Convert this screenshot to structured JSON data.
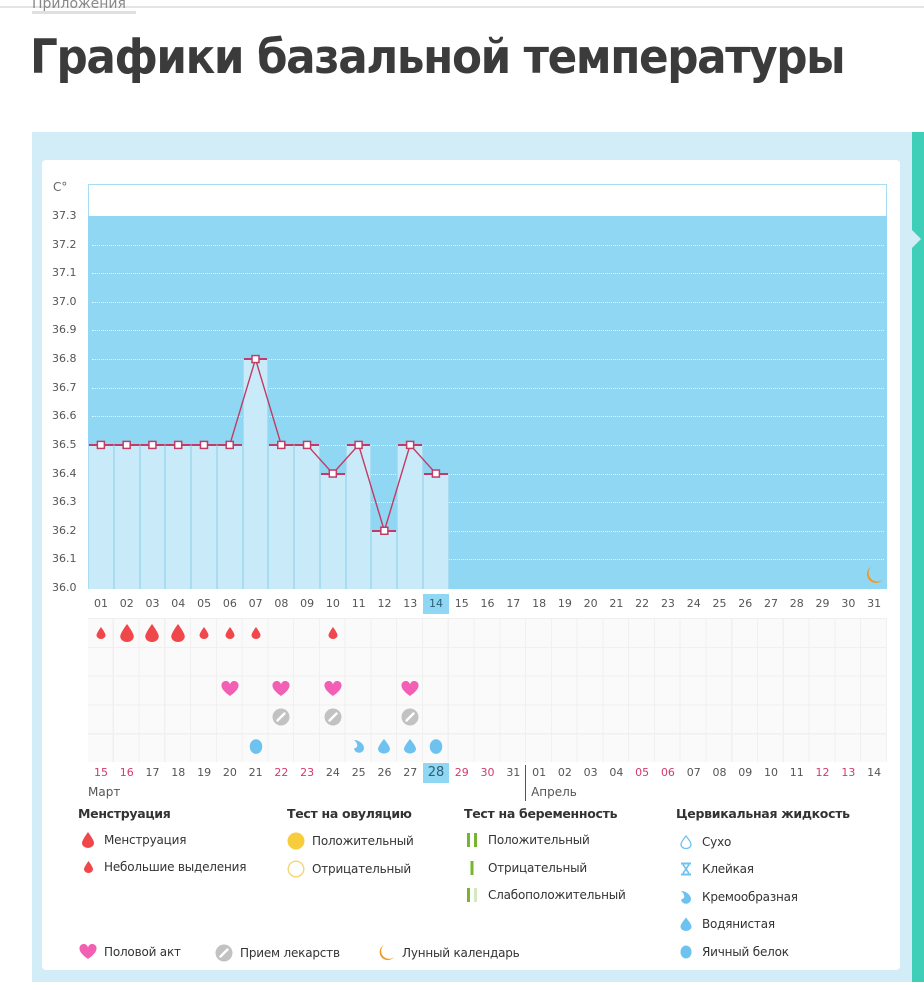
{
  "page": {
    "breadcrumb": "Приложения",
    "title": "Графики базальной температуры"
  },
  "colors": {
    "panel_bg": "#d3edf8",
    "plot_bg": "#8fd7f2",
    "bar_fill": "#c9ebf9",
    "line": "#c23a66",
    "menstruation": "#f0474a",
    "heart": "#f25fb4",
    "pill": "#c2c2c2",
    "cervical": "#6ec2ef",
    "ovulation_positive": "#f8cd3c",
    "pregnancy_test": "#78b52e",
    "moon": "#f29a1f",
    "accent_tab": "#3fcfb8",
    "weekend": "#d23b6b"
  },
  "chart_data": {
    "type": "line",
    "title": "Графики базальной температуры",
    "ylabel": "C°",
    "xlabel": "",
    "ylim": [
      36.0,
      37.3
    ],
    "y_ticks": [
      "37.3",
      "37.2",
      "37.1",
      "37.0",
      "36.9",
      "36.8",
      "36.7",
      "36.6",
      "36.5",
      "36.4",
      "36.3",
      "36.2",
      "36.1",
      "36.0"
    ],
    "grid": true,
    "cycle_days": [
      "01",
      "02",
      "03",
      "04",
      "05",
      "06",
      "07",
      "08",
      "09",
      "10",
      "11",
      "12",
      "13",
      "14",
      "15",
      "16",
      "17",
      "18",
      "19",
      "20",
      "21",
      "22",
      "23",
      "24",
      "25",
      "26",
      "27",
      "28",
      "29",
      "30",
      "31"
    ],
    "selected_cycle_day": "14",
    "series": [
      {
        "name": "Базальная температура",
        "x": [
          "01",
          "02",
          "03",
          "04",
          "05",
          "06",
          "07",
          "08",
          "09",
          "10",
          "11",
          "12",
          "13",
          "14"
        ],
        "values": [
          36.5,
          36.5,
          36.5,
          36.5,
          36.5,
          36.5,
          36.8,
          36.5,
          36.5,
          36.4,
          36.5,
          36.2,
          36.5,
          36.4
        ]
      }
    ],
    "calendar_dates": [
      {
        "d": "15",
        "weekend": true
      },
      {
        "d": "16",
        "weekend": true
      },
      {
        "d": "17",
        "weekend": false
      },
      {
        "d": "18",
        "weekend": false
      },
      {
        "d": "19",
        "weekend": false
      },
      {
        "d": "20",
        "weekend": false
      },
      {
        "d": "21",
        "weekend": false
      },
      {
        "d": "22",
        "weekend": true
      },
      {
        "d": "23",
        "weekend": true
      },
      {
        "d": "24",
        "weekend": false
      },
      {
        "d": "25",
        "weekend": false
      },
      {
        "d": "26",
        "weekend": false
      },
      {
        "d": "27",
        "weekend": false
      },
      {
        "d": "28",
        "weekend": false,
        "selected": true
      },
      {
        "d": "29",
        "weekend": true
      },
      {
        "d": "30",
        "weekend": true
      },
      {
        "d": "31",
        "weekend": false
      },
      {
        "d": "01",
        "weekend": false
      },
      {
        "d": "02",
        "weekend": false
      },
      {
        "d": "03",
        "weekend": false
      },
      {
        "d": "04",
        "weekend": false
      },
      {
        "d": "05",
        "weekend": true
      },
      {
        "d": "06",
        "weekend": true
      },
      {
        "d": "07",
        "weekend": false
      },
      {
        "d": "08",
        "weekend": false
      },
      {
        "d": "09",
        "weekend": false
      },
      {
        "d": "10",
        "weekend": false
      },
      {
        "d": "11",
        "weekend": false
      },
      {
        "d": "12",
        "weekend": true
      },
      {
        "d": "13",
        "weekend": true
      },
      {
        "d": "14",
        "weekend": false
      }
    ],
    "months": [
      {
        "label": "Март",
        "start_index": 0
      },
      {
        "label": "Апрель",
        "start_index": 17
      }
    ],
    "events": {
      "menstruation": [
        {
          "day": 1,
          "type": "spotting"
        },
        {
          "day": 2,
          "type": "menstruation"
        },
        {
          "day": 3,
          "type": "menstruation"
        },
        {
          "day": 4,
          "type": "menstruation"
        },
        {
          "day": 5,
          "type": "spotting"
        },
        {
          "day": 6,
          "type": "spotting"
        },
        {
          "day": 7,
          "type": "spotting"
        },
        {
          "day": 10,
          "type": "spotting"
        }
      ],
      "intercourse": [
        6,
        8,
        10,
        13
      ],
      "medication": [
        8,
        10,
        13
      ],
      "cervical_fluid": [
        {
          "day": 7,
          "type": "egg_white"
        },
        {
          "day": 11,
          "type": "creamy"
        },
        {
          "day": 12,
          "type": "watery"
        },
        {
          "day": 13,
          "type": "watery"
        },
        {
          "day": 14,
          "type": "egg_white"
        }
      ],
      "moon": [
        31
      ]
    }
  },
  "legend": {
    "menstruation": {
      "heading": "Менструация",
      "items": [
        {
          "label": "Менструация",
          "icon": "blood-drop-large-icon"
        },
        {
          "label": "Небольшие выделения",
          "icon": "blood-drop-small-icon"
        }
      ]
    },
    "ovulation_test": {
      "heading": "Тест на овуляцию",
      "items": [
        {
          "label": "Положительный",
          "icon": "filled-circle-icon"
        },
        {
          "label": "Отрицательный",
          "icon": "empty-circle-icon"
        }
      ]
    },
    "pregnancy_test": {
      "heading": "Тест на беременность",
      "items": [
        {
          "label": "Положительный",
          "icon": "two-bars-icon"
        },
        {
          "label": "Отрицательный",
          "icon": "one-bar-icon"
        },
        {
          "label": "Слабоположительный",
          "icon": "faint-two-bars-icon"
        }
      ]
    },
    "cervical_fluid": {
      "heading": "Цервикальная жидкость",
      "items": [
        {
          "label": "Сухо",
          "icon": "outline-drop-icon"
        },
        {
          "label": "Клейкая",
          "icon": "hourglass-icon"
        },
        {
          "label": "Кремообразная",
          "icon": "curl-drop-icon"
        },
        {
          "label": "Водянистая",
          "icon": "water-drop-icon"
        },
        {
          "label": "Яичный белок",
          "icon": "egg-icon"
        }
      ]
    },
    "other": [
      {
        "label": "Половой акт",
        "icon": "heart-icon"
      },
      {
        "label": "Прием лекарств",
        "icon": "pill-icon"
      },
      {
        "label": "Лунный календарь",
        "icon": "moon-icon"
      }
    ]
  }
}
